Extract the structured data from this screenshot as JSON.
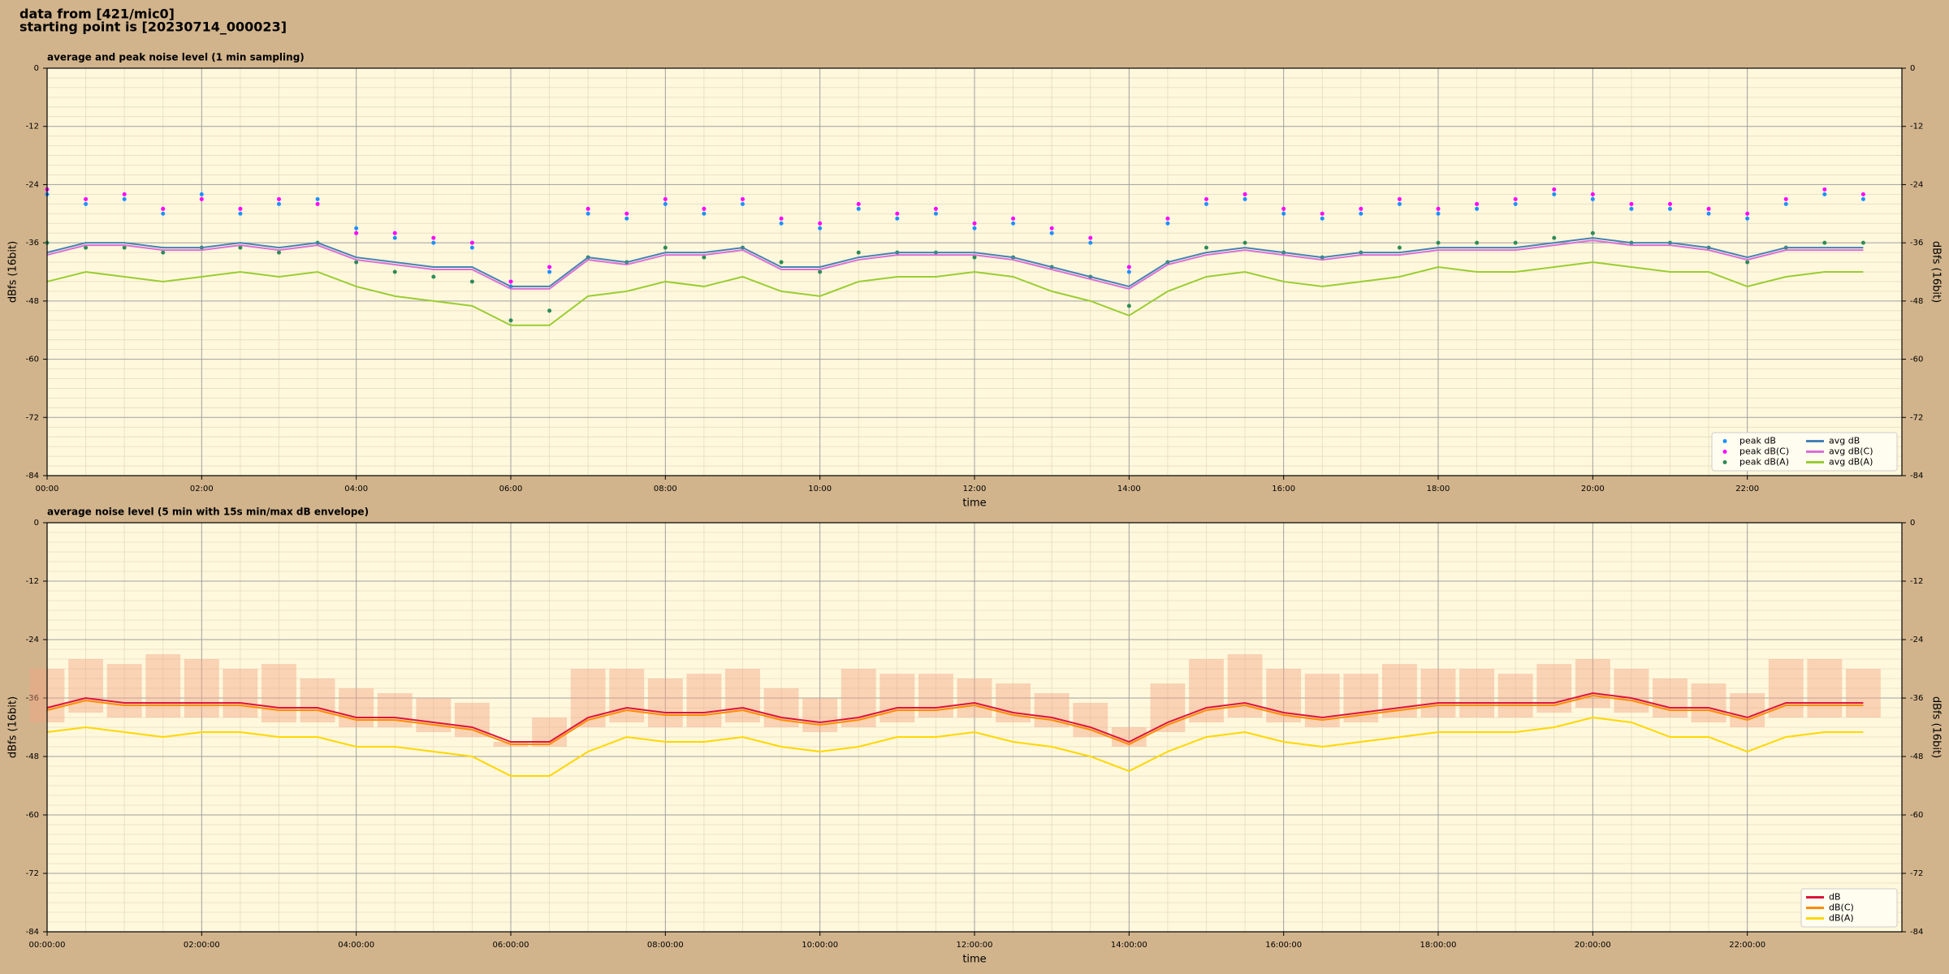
{
  "header": {
    "line1": "data from [421/mic0]",
    "line2": "starting point is [20230714_000023]"
  },
  "chart_data": [
    {
      "type": "line",
      "title": "average and peak noise level (1 min sampling)",
      "x_label": "time",
      "y_label": "dBfs (16bit)",
      "y2_label": "dBfs (16bit)",
      "xlim": [
        0,
        24
      ],
      "xticks": [
        {
          "value": 0,
          "label": "00:00"
        },
        {
          "value": 2,
          "label": "02:00"
        },
        {
          "value": 4,
          "label": "04:00"
        },
        {
          "value": 6,
          "label": "06:00"
        },
        {
          "value": 8,
          "label": "08:00"
        },
        {
          "value": 10,
          "label": "10:00"
        },
        {
          "value": 12,
          "label": "12:00"
        },
        {
          "value": 14,
          "label": "14:00"
        },
        {
          "value": 16,
          "label": "16:00"
        },
        {
          "value": 18,
          "label": "18:00"
        },
        {
          "value": 20,
          "label": "20:00"
        },
        {
          "value": 22,
          "label": "22:00"
        }
      ],
      "ylim": [
        -84,
        0
      ],
      "yticks": [
        -84,
        -72,
        -60,
        -48,
        -36,
        -24,
        -12,
        0
      ],
      "grid": true,
      "minor_grid": true,
      "legend": "lower right",
      "legend_columns": 2,
      "x": [
        0,
        0.5,
        1,
        1.5,
        2,
        2.5,
        3,
        3.5,
        4,
        4.5,
        5,
        5.5,
        6,
        6.5,
        7,
        7.5,
        8,
        8.5,
        9,
        9.5,
        10,
        10.5,
        11,
        11.5,
        12,
        12.5,
        13,
        13.5,
        14,
        14.5,
        15,
        15.5,
        16,
        16.5,
        17,
        17.5,
        18,
        18.5,
        19,
        19.5,
        20,
        20.5,
        21,
        21.5,
        22,
        22.5,
        23,
        23.5
      ],
      "series": [
        {
          "name": "peak dB",
          "kind": "points",
          "color": "#1e90ff",
          "values": [
            -26,
            -28,
            -27,
            -30,
            -26,
            -30,
            -28,
            -27,
            -33,
            -35,
            -36,
            -37,
            -45,
            -42,
            -30,
            -31,
            -28,
            -30,
            -28,
            -32,
            -33,
            -29,
            -31,
            -30,
            -33,
            -32,
            -34,
            -36,
            -42,
            -32,
            -28,
            -27,
            -30,
            -31,
            -30,
            -28,
            -30,
            -29,
            -28,
            -26,
            -27,
            -29,
            -29,
            -30,
            -31,
            -28,
            -26,
            -27
          ]
        },
        {
          "name": "peak dB(C)",
          "kind": "points",
          "color": "#ff00ff",
          "values": [
            -25,
            -27,
            -26,
            -29,
            -27,
            -29,
            -27,
            -28,
            -34,
            -34,
            -35,
            -36,
            -44,
            -41,
            -29,
            -30,
            -27,
            -29,
            -27,
            -31,
            -32,
            -28,
            -30,
            -29,
            -32,
            -31,
            -33,
            -35,
            -41,
            -31,
            -27,
            -26,
            -29,
            -30,
            -29,
            -27,
            -29,
            -28,
            -27,
            -25,
            -26,
            -28,
            -28,
            -29,
            -30,
            -27,
            -25,
            -26
          ]
        },
        {
          "name": "peak dB(A)",
          "kind": "points",
          "color": "#2e8b57",
          "values": [
            -36,
            -37,
            -37,
            -38,
            -37,
            -37,
            -38,
            -36,
            -40,
            -42,
            -43,
            -44,
            -52,
            -50,
            -39,
            -40,
            -37,
            -39,
            -37,
            -40,
            -42,
            -38,
            -38,
            -38,
            -39,
            -39,
            -41,
            -43,
            -49,
            -40,
            -37,
            -36,
            -38,
            -39,
            -38,
            -37,
            -36,
            -36,
            -36,
            -35,
            -34,
            -36,
            -36,
            -37,
            -40,
            -37,
            -36,
            -36
          ]
        },
        {
          "name": "avg dB",
          "kind": "line",
          "color": "#4682b4",
          "values": [
            -38,
            -36,
            -36,
            -37,
            -37,
            -36,
            -37,
            -36,
            -39,
            -40,
            -41,
            -41,
            -45,
            -45,
            -39,
            -40,
            -38,
            -38,
            -37,
            -41,
            -41,
            -39,
            -38,
            -38,
            -38,
            -39,
            -41,
            -43,
            -45,
            -40,
            -38,
            -37,
            -38,
            -39,
            -38,
            -38,
            -37,
            -37,
            -37,
            -36,
            -35,
            -36,
            -36,
            -37,
            -39,
            -37,
            -37,
            -37
          ]
        },
        {
          "name": "avg dB(C)",
          "kind": "line",
          "color": "#da70d6",
          "values": [
            -38.5,
            -36.5,
            -36.5,
            -37.5,
            -37.5,
            -36.5,
            -37.5,
            -36.5,
            -39.5,
            -40.5,
            -41.5,
            -41.5,
            -45.5,
            -45.5,
            -39.5,
            -40.5,
            -38.5,
            -38.5,
            -37.5,
            -41.5,
            -41.5,
            -39.5,
            -38.5,
            -38.5,
            -38.5,
            -39.5,
            -41.5,
            -43.5,
            -45.5,
            -40.5,
            -38.5,
            -37.5,
            -38.5,
            -39.5,
            -38.5,
            -38.5,
            -37.5,
            -37.5,
            -37.5,
            -36.5,
            -35.5,
            -36.5,
            -36.5,
            -37.5,
            -39.5,
            -37.5,
            -37.5,
            -37.5
          ]
        },
        {
          "name": "avg dB(A)",
          "kind": "line",
          "color": "#9acd32",
          "values": [
            -44,
            -42,
            -43,
            -44,
            -43,
            -42,
            -43,
            -42,
            -45,
            -47,
            -48,
            -49,
            -53,
            -53,
            -47,
            -46,
            -44,
            -45,
            -43,
            -46,
            -47,
            -44,
            -43,
            -43,
            -42,
            -43,
            -46,
            -48,
            -51,
            -46,
            -43,
            -42,
            -44,
            -45,
            -44,
            -43,
            -41,
            -42,
            -42,
            -41,
            -40,
            -41,
            -42,
            -42,
            -45,
            -43,
            -42,
            -42
          ]
        }
      ]
    },
    {
      "type": "line",
      "title": "average noise level (5 min with 15s min/max dB envelope)",
      "x_label": "time",
      "y_label": "dBfs (16bit)",
      "y2_label": "dBfs (16bit)",
      "xlim": [
        0,
        24
      ],
      "xticks": [
        {
          "value": 0,
          "label": "00:00:00"
        },
        {
          "value": 2,
          "label": "02:00:00"
        },
        {
          "value": 4,
          "label": "04:00:00"
        },
        {
          "value": 6,
          "label": "06:00:00"
        },
        {
          "value": 8,
          "label": "08:00:00"
        },
        {
          "value": 10,
          "label": "10:00:00"
        },
        {
          "value": 12,
          "label": "12:00:00"
        },
        {
          "value": 14,
          "label": "14:00:00"
        },
        {
          "value": 16,
          "label": "16:00:00"
        },
        {
          "value": 18,
          "label": "18:00:00"
        },
        {
          "value": 20,
          "label": "20:00:00"
        },
        {
          "value": 22,
          "label": "22:00:00"
        }
      ],
      "ylim": [
        -84,
        0
      ],
      "yticks": [
        -84,
        -72,
        -60,
        -48,
        -36,
        -24,
        -12,
        0
      ],
      "grid": true,
      "minor_grid": true,
      "legend": "lower right",
      "legend_columns": 1,
      "x": [
        0,
        0.5,
        1,
        1.5,
        2,
        2.5,
        3,
        3.5,
        4,
        4.5,
        5,
        5.5,
        6,
        6.5,
        7,
        7.5,
        8,
        8.5,
        9,
        9.5,
        10,
        10.5,
        11,
        11.5,
        12,
        12.5,
        13,
        13.5,
        14,
        14.5,
        15,
        15.5,
        16,
        16.5,
        17,
        17.5,
        18,
        18.5,
        19,
        19.5,
        20,
        20.5,
        21,
        21.5,
        22,
        22.5,
        23,
        23.5
      ],
      "envelope": {
        "color": "#f4a582",
        "max": [
          -30,
          -28,
          -29,
          -27,
          -28,
          -30,
          -29,
          -32,
          -34,
          -35,
          -36,
          -37,
          -45,
          -40,
          -30,
          -30,
          -32,
          -31,
          -30,
          -34,
          -36,
          -30,
          -31,
          -31,
          -32,
          -33,
          -35,
          -37,
          -42,
          -33,
          -28,
          -27,
          -30,
          -31,
          -31,
          -29,
          -30,
          -30,
          -31,
          -29,
          -28,
          -30,
          -32,
          -33,
          -35,
          -28,
          -28,
          -30
        ],
        "min": [
          -41,
          -39,
          -40,
          -40,
          -40,
          -40,
          -41,
          -41,
          -42,
          -42,
          -43,
          -44,
          -46,
          -46,
          -42,
          -41,
          -42,
          -42,
          -41,
          -42,
          -43,
          -42,
          -41,
          -40,
          -40,
          -41,
          -42,
          -44,
          -46,
          -43,
          -41,
          -40,
          -41,
          -42,
          -41,
          -40,
          -40,
          -40,
          -40,
          -39,
          -38,
          -39,
          -40,
          -41,
          -42,
          -40,
          -40,
          -40
        ]
      },
      "series": [
        {
          "name": "dB",
          "kind": "line",
          "color": "#dc143c",
          "values": [
            -38,
            -36,
            -37,
            -37,
            -37,
            -37,
            -38,
            -38,
            -40,
            -40,
            -41,
            -42,
            -45,
            -45,
            -40,
            -38,
            -39,
            -39,
            -38,
            -40,
            -41,
            -40,
            -38,
            -38,
            -37,
            -39,
            -40,
            -42,
            -45,
            -41,
            -38,
            -37,
            -39,
            -40,
            -39,
            -38,
            -37,
            -37,
            -37,
            -37,
            -35,
            -36,
            -38,
            -38,
            -40,
            -37,
            -37,
            -37
          ]
        },
        {
          "name": "dB(C)",
          "kind": "line",
          "color": "#ff8c00",
          "values": [
            -38.5,
            -36.5,
            -37.5,
            -37.5,
            -37.5,
            -37.5,
            -38.5,
            -38.5,
            -40.5,
            -40.5,
            -41.5,
            -42.5,
            -45.5,
            -45.5,
            -40.5,
            -38.5,
            -39.5,
            -39.5,
            -38.5,
            -40.5,
            -41.5,
            -40.5,
            -38.5,
            -38.5,
            -37.5,
            -39.5,
            -40.5,
            -42.5,
            -45.5,
            -41.5,
            -38.5,
            -37.5,
            -39.5,
            -40.5,
            -39.5,
            -38.5,
            -37.5,
            -37.5,
            -37.5,
            -37.5,
            -35.5,
            -36.5,
            -38.5,
            -38.5,
            -40.5,
            -37.5,
            -37.5,
            -37.5
          ]
        },
        {
          "name": "dB(A)",
          "kind": "line",
          "color": "#ffd700",
          "values": [
            -43,
            -42,
            -43,
            -44,
            -43,
            -43,
            -44,
            -44,
            -46,
            -46,
            -47,
            -48,
            -52,
            -52,
            -47,
            -44,
            -45,
            -45,
            -44,
            -46,
            -47,
            -46,
            -44,
            -44,
            -43,
            -45,
            -46,
            -48,
            -51,
            -47,
            -44,
            -43,
            -45,
            -46,
            -45,
            -44,
            -43,
            -43,
            -43,
            -42,
            -40,
            -41,
            -44,
            -44,
            -47,
            -44,
            -43,
            -43
          ]
        }
      ]
    }
  ]
}
